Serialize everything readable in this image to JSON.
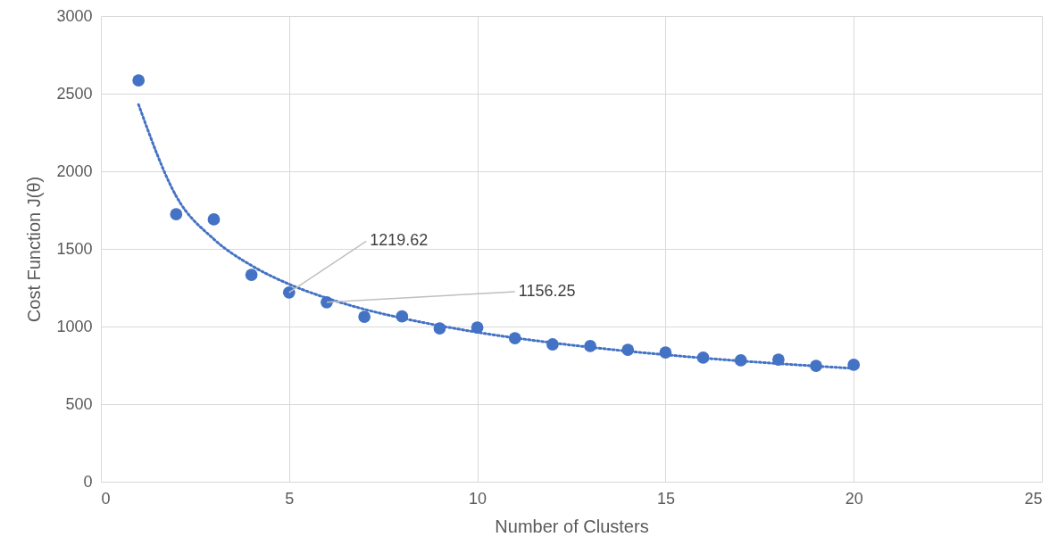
{
  "chart_data": {
    "type": "scatter",
    "xlabel": "Number of Clusters",
    "ylabel": "Cost Function J(θ)",
    "xlim": [
      0,
      25
    ],
    "xticks": [
      0,
      5,
      10,
      15,
      20,
      25
    ],
    "ylim": [
      0,
      3000
    ],
    "yticks": [
      0,
      500,
      1000,
      1500,
      2000,
      2500,
      3000
    ],
    "grid": true,
    "marker": "circle",
    "series": [
      {
        "color": "#4472c4",
        "x": [
          1,
          2,
          3,
          4,
          5,
          6,
          7,
          8,
          9,
          10,
          11,
          12,
          13,
          14,
          15,
          16,
          17,
          18,
          19,
          20
        ],
        "values": [
          2586,
          1724,
          1690,
          1333,
          1219.62,
          1156.25,
          1063,
          1065,
          988,
          994,
          925,
          885,
          874,
          850,
          833,
          799,
          782,
          787,
          747,
          753
        ]
      },
      {
        "type": "line",
        "line_style": "dotted",
        "marker": "none",
        "color": "#4472c4",
        "x": [
          1,
          2,
          3,
          4,
          5,
          6,
          7,
          8,
          10,
          12,
          14,
          16,
          18,
          20
        ],
        "values": [
          2430,
          1840,
          1563,
          1393,
          1273,
          1183,
          1111,
          1054,
          963,
          895,
          841,
          797,
          761,
          730
        ]
      }
    ],
    "annotations": [
      {
        "text": "1219.62",
        "x": 5,
        "y": 1219.62
      },
      {
        "text": "1156.25",
        "x": 6,
        "y": 1156.25
      }
    ]
  }
}
